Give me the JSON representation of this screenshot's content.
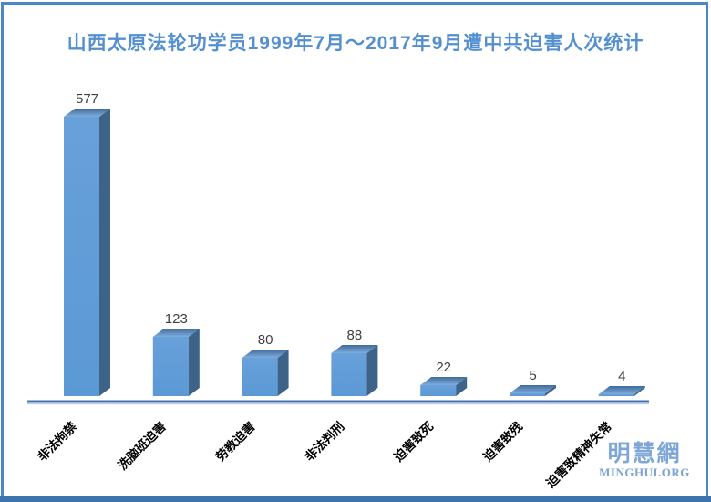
{
  "chart_data": {
    "type": "bar",
    "style": "3d-column",
    "title": "山西太原法轮功学员1999年7月～2017年9月遭中共迫害人次统计",
    "categories": [
      "非法拘禁",
      "洗脑班迫害",
      "劳教迫害",
      "非法判刑",
      "迫害致死",
      "迫害致残",
      "迫害致精神失常"
    ],
    "values": [
      577,
      123,
      80,
      88,
      22,
      5,
      4
    ],
    "xlabel": "",
    "ylabel": "",
    "ylim": [
      0,
      600
    ],
    "grid": false,
    "legend": false,
    "value_labels_shown": true,
    "title_color": "#5490d0",
    "value_label_color": "#3f3f3f",
    "category_label_color": "#000000",
    "bar_colors": {
      "front": "#5b99d5",
      "side": "#3d6389",
      "top_back": "#3f6b9a",
      "top_front": "#7fadde"
    },
    "axis_line_color": "#4472ad",
    "axis_line_light_color": "#b9cde8"
  },
  "watermark": {
    "cjk_text": "明慧網",
    "latin_text": "MINGHUI.ORG",
    "color": "#7ea7d8"
  },
  "frame": {
    "border_color": "#4a86c8",
    "bottom_bar_color": "#3e74ad",
    "background": "#ffffff"
  }
}
